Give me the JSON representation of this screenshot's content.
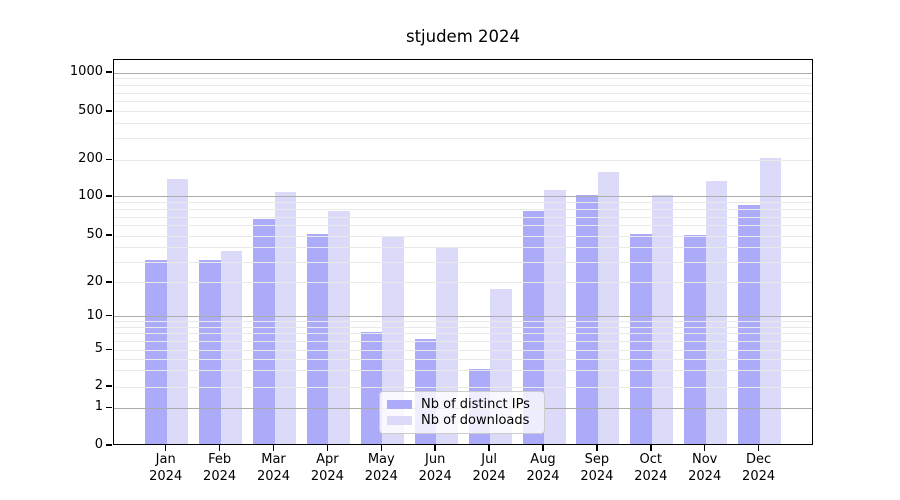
{
  "title": "stjudem 2024",
  "chart_data": {
    "type": "bar",
    "title": "stjudem 2024",
    "yscale": "log-like (0,1,2,5,10,20,50,100,200,500,1000)",
    "grid": "on, gridlines drawn over bars",
    "legend_position": "bottom-center inside plot",
    "months": [
      "Jan",
      "Feb",
      "Mar",
      "Apr",
      "May",
      "Jun",
      "Jul",
      "Aug",
      "Sep",
      "Oct",
      "Nov",
      "Dec"
    ],
    "year_label": "2024",
    "categories": [
      "Jan 2024",
      "Feb 2024",
      "Mar 2024",
      "Apr 2024",
      "May 2024",
      "Jun 2024",
      "Jul 2024",
      "Aug 2024",
      "Sep 2024",
      "Oct 2024",
      "Nov 2024",
      "Dec 2024"
    ],
    "series": [
      {
        "name": "Nb of distinct IPs",
        "color": "#ababf9",
        "values": [
          30,
          30,
          65,
          50,
          7,
          6,
          3,
          75,
          100,
          50,
          49,
          84
        ]
      },
      {
        "name": "Nb of downloads",
        "color": "#dbdbf9",
        "values": [
          135,
          36,
          105,
          75,
          47,
          39,
          17,
          110,
          155,
          100,
          130,
          200
        ]
      }
    ],
    "yticks": [
      0,
      1,
      2,
      5,
      10,
      20,
      50,
      100,
      200,
      500,
      1000
    ],
    "ylim": [
      0,
      1200
    ],
    "colors": {
      "axis": "#000000",
      "major_grid": "#ababab",
      "minor_grid": "#e9e9e9",
      "legend_border": "#cccccc"
    }
  }
}
